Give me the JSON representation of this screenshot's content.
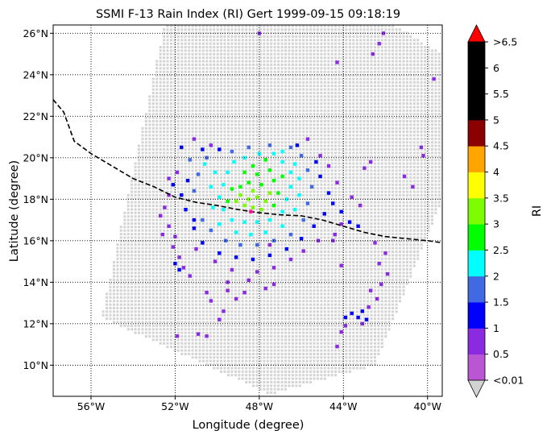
{
  "chart_data": {
    "type": "heatmap",
    "title": "SSMI F-13 Rain Index (RI) Gert 1999-09-15 09:18:19",
    "xlabel": "Longitude (degree)",
    "ylabel": "Latitude (degree)",
    "xlim": [
      -57.8,
      -39.3
    ],
    "ylim": [
      8.5,
      26.4
    ],
    "grid": true,
    "x_ticks": [
      {
        "value": -56,
        "label": "56°W"
      },
      {
        "value": -52,
        "label": "52°W"
      },
      {
        "value": -48,
        "label": "48°W"
      },
      {
        "value": -44,
        "label": "44°W"
      },
      {
        "value": -40,
        "label": "40°W"
      }
    ],
    "y_ticks": [
      {
        "value": 10,
        "label": "10°N"
      },
      {
        "value": 12,
        "label": "12°N"
      },
      {
        "value": 14,
        "label": "14°N"
      },
      {
        "value": 16,
        "label": "16°N"
      },
      {
        "value": 18,
        "label": "18°N"
      },
      {
        "value": 20,
        "label": "20°N"
      },
      {
        "value": 22,
        "label": "22°N"
      },
      {
        "value": 24,
        "label": "24°N"
      },
      {
        "value": 26,
        "label": "26°N"
      }
    ],
    "colorbar": {
      "label": "RI",
      "colors": [
        "#d3d3d3",
        "#ba55d3",
        "#8a2be2",
        "#0000ff",
        "#4169e1",
        "#00ffff",
        "#00ff00",
        "#7cfc00",
        "#ffff00",
        "#ffa500",
        "#8b0000",
        "#000000",
        "#000000",
        "#000000",
        "#ff0000"
      ],
      "bins": [
        "<0.01",
        "0.01-0.5",
        "0.5-1",
        "1-1.5",
        "1.5-2",
        "2-2.5",
        "2.5-3",
        "3-3.5",
        "3.5-4",
        "4-4.5",
        "4.5-5",
        "5-5.5",
        "5.5-6",
        "6-6.5",
        ">6.5"
      ],
      "tick_labels": [
        "<0.01",
        "0.5",
        "1",
        "1.5",
        "2",
        "2.5",
        "3",
        "3.5",
        "4",
        "4.5",
        "5",
        "5.5",
        "6",
        ">6.5"
      ]
    },
    "swath": {
      "corners_deg": [
        [
          -52.5,
          26.4
        ],
        [
          -41.6,
          26.4
        ],
        [
          -39.3,
          25.0
        ],
        [
          -39.3,
          18.0
        ],
        [
          -42.5,
          10.0
        ],
        [
          -47.5,
          8.6
        ],
        [
          -55.5,
          12.3
        ]
      ]
    },
    "track": {
      "points": [
        [
          -57.8,
          22.8
        ],
        [
          -57.3,
          22.2
        ],
        [
          -56.8,
          20.8
        ],
        [
          -56.0,
          20.2
        ],
        [
          -55.0,
          19.6
        ],
        [
          -54.0,
          19.0
        ],
        [
          -53.0,
          18.6
        ],
        [
          -52.0,
          18.1
        ],
        [
          -51.0,
          17.85
        ],
        [
          -50.0,
          17.7
        ],
        [
          -49.0,
          17.5
        ],
        [
          -48.0,
          17.35
        ],
        [
          -47.0,
          17.25
        ],
        [
          -46.0,
          17.2
        ],
        [
          -45.0,
          17.0
        ],
        [
          -44.0,
          16.7
        ],
        [
          -43.0,
          16.4
        ],
        [
          -42.0,
          16.2
        ],
        [
          -41.0,
          16.1
        ],
        [
          -40.0,
          16.0
        ],
        [
          -39.3,
          15.9
        ]
      ],
      "center": [
        -48.4,
        17.4
      ]
    },
    "rain_pixels": [
      [
        -48.5,
        18.0,
        7
      ],
      [
        -48.1,
        18.1,
        7
      ],
      [
        -47.7,
        17.9,
        7
      ],
      [
        -48.9,
        18.2,
        7
      ],
      [
        -48.3,
        17.6,
        7
      ],
      [
        -48.7,
        17.7,
        7
      ],
      [
        -47.9,
        17.5,
        7
      ],
      [
        -49.1,
        17.9,
        7
      ],
      [
        -47.5,
        18.3,
        7
      ],
      [
        -48.3,
        18.4,
        7
      ],
      [
        -48.9,
        18.6,
        6
      ],
      [
        -48.5,
        18.8,
        6
      ],
      [
        -47.9,
        18.7,
        6
      ],
      [
        -47.3,
        18.9,
        6
      ],
      [
        -48.1,
        19.2,
        6
      ],
      [
        -47.5,
        19.4,
        6
      ],
      [
        -48.7,
        19.3,
        6
      ],
      [
        -48.3,
        19.6,
        6
      ],
      [
        -47.1,
        18.3,
        6
      ],
      [
        -47.3,
        17.7,
        6
      ],
      [
        -49.3,
        18.5,
        6
      ],
      [
        -49.5,
        17.9,
        6
      ],
      [
        -46.9,
        19.1,
        6
      ],
      [
        -47.7,
        19.9,
        6
      ],
      [
        -49.5,
        19.3,
        5
      ],
      [
        -49.7,
        18.7,
        5
      ],
      [
        -49.9,
        18.1,
        5
      ],
      [
        -49.7,
        17.5,
        5
      ],
      [
        -49.3,
        17.0,
        5
      ],
      [
        -48.7,
        16.9,
        5
      ],
      [
        -48.1,
        16.9,
        5
      ],
      [
        -47.5,
        17.0,
        5
      ],
      [
        -46.9,
        17.4,
        5
      ],
      [
        -46.7,
        18.0,
        5
      ],
      [
        -46.5,
        18.6,
        5
      ],
      [
        -46.5,
        19.3,
        5
      ],
      [
        -46.9,
        19.8,
        5
      ],
      [
        -47.3,
        20.2,
        5
      ],
      [
        -48.0,
        20.2,
        5
      ],
      [
        -48.7,
        20.0,
        5
      ],
      [
        -49.2,
        19.8,
        5
      ],
      [
        -50.1,
        19.3,
        5
      ],
      [
        -50.3,
        18.6,
        5
      ],
      [
        -50.2,
        17.6,
        5
      ],
      [
        -49.9,
        16.8,
        5
      ],
      [
        -49.1,
        16.4,
        5
      ],
      [
        -48.4,
        16.3,
        5
      ],
      [
        -47.7,
        16.4,
        5
      ],
      [
        -46.9,
        16.7,
        5
      ],
      [
        -46.3,
        17.5,
        5
      ],
      [
        -46.1,
        18.2,
        5
      ],
      [
        -46.1,
        19.0,
        5
      ],
      [
        -46.3,
        19.7,
        5
      ],
      [
        -50.6,
        19.7,
        5
      ],
      [
        -46.9,
        20.3,
        5
      ],
      [
        -50.5,
        20.0,
        4
      ],
      [
        -50.9,
        19.2,
        4
      ],
      [
        -51.1,
        18.4,
        4
      ],
      [
        -50.7,
        17.0,
        4
      ],
      [
        -50.3,
        16.5,
        4
      ],
      [
        -49.6,
        16.0,
        4
      ],
      [
        -48.9,
        15.8,
        4
      ],
      [
        -48.1,
        15.8,
        4
      ],
      [
        -47.3,
        16.0,
        4
      ],
      [
        -46.5,
        16.3,
        4
      ],
      [
        -45.9,
        17.0,
        4
      ],
      [
        -45.7,
        17.8,
        4
      ],
      [
        -45.5,
        18.6,
        4
      ],
      [
        -45.7,
        19.4,
        4
      ],
      [
        -46.0,
        20.1,
        4
      ],
      [
        -46.5,
        20.5,
        4
      ],
      [
        -47.5,
        20.6,
        4
      ],
      [
        -48.5,
        20.5,
        4
      ],
      [
        -49.3,
        20.3,
        4
      ],
      [
        -51.3,
        19.9,
        4
      ],
      [
        -51.4,
        18.9,
        3
      ],
      [
        -51.7,
        18.2,
        3
      ],
      [
        -51.5,
        17.5,
        3
      ],
      [
        -51.1,
        16.6,
        3
      ],
      [
        -50.7,
        15.9,
        3
      ],
      [
        -49.9,
        15.4,
        3
      ],
      [
        -49.1,
        15.2,
        3
      ],
      [
        -48.3,
        15.1,
        3
      ],
      [
        -47.5,
        15.3,
        3
      ],
      [
        -46.7,
        15.6,
        3
      ],
      [
        -46.0,
        16.1,
        3
      ],
      [
        -45.4,
        16.7,
        3
      ],
      [
        -44.9,
        17.3,
        3
      ],
      [
        -44.5,
        17.8,
        3
      ],
      [
        -44.1,
        17.4,
        3
      ],
      [
        -43.7,
        16.9,
        3
      ],
      [
        -43.3,
        16.7,
        3
      ],
      [
        -44.7,
        18.3,
        3
      ],
      [
        -45.1,
        19.1,
        3
      ],
      [
        -45.3,
        19.8,
        3
      ],
      [
        -46.2,
        20.6,
        3
      ],
      [
        -49.9,
        20.4,
        3
      ],
      [
        -50.7,
        20.4,
        3
      ],
      [
        -52.1,
        18.7,
        3
      ],
      [
        -51.7,
        20.5,
        3
      ],
      [
        -43.1,
        12.6,
        3
      ],
      [
        -43.3,
        12.3,
        3
      ],
      [
        -43.6,
        12.5,
        3
      ],
      [
        -42.9,
        12.2,
        3
      ],
      [
        -43.9,
        12.3,
        3
      ],
      [
        -51.1,
        17.0,
        3
      ],
      [
        -52.0,
        14.9,
        3
      ],
      [
        -51.8,
        14.6,
        3
      ],
      [
        -52.3,
        18.2,
        2
      ],
      [
        -52.5,
        17.6,
        2
      ],
      [
        -52.7,
        17.2,
        2
      ],
      [
        -52.3,
        16.7,
        2
      ],
      [
        -52.0,
        16.2,
        2
      ],
      [
        -52.6,
        16.3,
        2
      ],
      [
        -52.1,
        15.7,
        2
      ],
      [
        -51.8,
        15.2,
        2
      ],
      [
        -51.6,
        14.7,
        2
      ],
      [
        -51.3,
        14.3,
        2
      ],
      [
        -51.0,
        15.6,
        2
      ],
      [
        -50.1,
        15.0,
        2
      ],
      [
        -49.3,
        14.6,
        2
      ],
      [
        -48.1,
        14.5,
        2
      ],
      [
        -47.3,
        14.7,
        2
      ],
      [
        -46.5,
        15.1,
        2
      ],
      [
        -45.9,
        15.5,
        2
      ],
      [
        -45.2,
        16.0,
        2
      ],
      [
        -44.4,
        16.3,
        2
      ],
      [
        -44.1,
        16.8,
        2
      ],
      [
        -43.2,
        17.7,
        2
      ],
      [
        -43.6,
        18.1,
        2
      ],
      [
        -44.3,
        18.8,
        2
      ],
      [
        -44.7,
        19.6,
        2
      ],
      [
        -45.1,
        20.1,
        2
      ],
      [
        -45.7,
        20.9,
        2
      ],
      [
        -50.3,
        20.6,
        2
      ],
      [
        -51.1,
        20.9,
        2
      ],
      [
        -51.9,
        19.3,
        2
      ],
      [
        -52.3,
        19.0,
        2
      ],
      [
        -42.5,
        15.9,
        2
      ],
      [
        -42.0,
        15.4,
        2
      ],
      [
        -42.3,
        14.9,
        2
      ],
      [
        -41.9,
        14.4,
        2
      ],
      [
        -42.2,
        13.9,
        2
      ],
      [
        -42.7,
        13.6,
        2
      ],
      [
        -42.4,
        13.2,
        2
      ],
      [
        -42.8,
        12.8,
        2
      ],
      [
        -43.1,
        12.0,
        2
      ],
      [
        -43.9,
        11.9,
        2
      ],
      [
        -44.1,
        11.6,
        2
      ],
      [
        -44.3,
        10.9,
        2
      ],
      [
        -48.5,
        14.1,
        2
      ],
      [
        -48.7,
        13.5,
        2
      ],
      [
        -49.1,
        13.2,
        2
      ],
      [
        -49.5,
        13.6,
        2
      ],
      [
        -47.7,
        13.7,
        2
      ],
      [
        -47.3,
        13.9,
        2
      ],
      [
        -50.5,
        13.5,
        2
      ],
      [
        -50.3,
        13.1,
        2
      ],
      [
        -49.7,
        12.6,
        2
      ],
      [
        -49.9,
        12.2,
        2
      ],
      [
        -51.9,
        11.4,
        2
      ],
      [
        -50.5,
        11.4,
        2
      ],
      [
        -50.9,
        11.5,
        2
      ],
      [
        -43.0,
        19.5,
        2
      ],
      [
        -42.7,
        19.8,
        2
      ],
      [
        -41.1,
        19.1,
        2
      ],
      [
        -40.7,
        18.6,
        2
      ],
      [
        -40.3,
        20.5,
        2
      ],
      [
        -40.2,
        20.1,
        2
      ],
      [
        -39.7,
        23.8,
        2
      ],
      [
        -44.1,
        14.8,
        2
      ],
      [
        -44.5,
        16.0,
        2
      ],
      [
        -42.6,
        25.0,
        2
      ],
      [
        -42.3,
        25.5,
        2
      ],
      [
        -44.3,
        24.6,
        2
      ],
      [
        -42.1,
        26.0,
        2
      ],
      [
        -48.0,
        26.0,
        2
      ],
      [
        -47.5,
        15.8,
        2
      ],
      [
        -49.5,
        14.0,
        2
      ]
    ]
  }
}
